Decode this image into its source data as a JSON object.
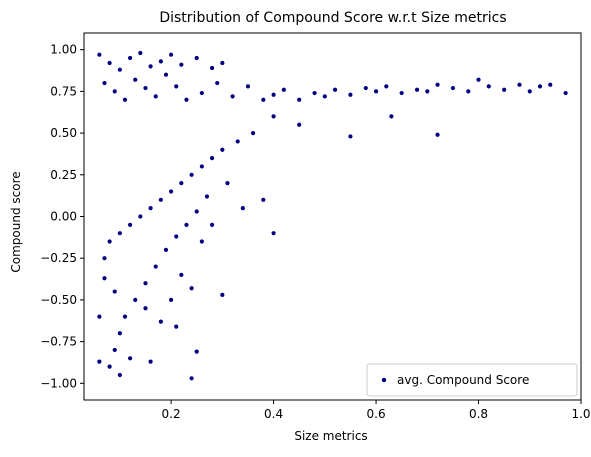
{
  "chart_data": {
    "type": "scatter",
    "title": "Distribution of Compound Score w.r.t Size metrics",
    "xlabel": "Size metrics",
    "ylabel": "Compound score",
    "xlim": [
      0.03,
      1.0
    ],
    "ylim": [
      -1.1,
      1.1
    ],
    "x_ticks": [
      0.2,
      0.4,
      0.6,
      0.8,
      1.0
    ],
    "x_tick_labels": [
      "0.2",
      "0.4",
      "0.6",
      "0.8",
      "1.0"
    ],
    "y_ticks": [
      1.0,
      0.75,
      0.5,
      0.25,
      0.0,
      -0.25,
      -0.5,
      -0.75,
      -1.0
    ],
    "y_tick_labels": [
      "1.00",
      "0.75",
      "0.50",
      "0.25",
      "0.00",
      "−0.25",
      "−0.50",
      "−0.75",
      "−1.00"
    ],
    "grid": false,
    "legend_position": "lower-right",
    "series": [
      {
        "name": "avg. Compound Score",
        "color": "#000080",
        "marker": "circle",
        "points": [
          [
            0.06,
            0.97
          ],
          [
            0.08,
            0.92
          ],
          [
            0.1,
            0.88
          ],
          [
            0.12,
            0.95
          ],
          [
            0.14,
            0.98
          ],
          [
            0.16,
            0.9
          ],
          [
            0.18,
            0.93
          ],
          [
            0.2,
            0.97
          ],
          [
            0.22,
            0.91
          ],
          [
            0.25,
            0.95
          ],
          [
            0.28,
            0.89
          ],
          [
            0.3,
            0.92
          ],
          [
            0.07,
            0.8
          ],
          [
            0.09,
            0.75
          ],
          [
            0.11,
            0.7
          ],
          [
            0.13,
            0.82
          ],
          [
            0.15,
            0.77
          ],
          [
            0.17,
            0.72
          ],
          [
            0.19,
            0.85
          ],
          [
            0.21,
            0.78
          ],
          [
            0.23,
            0.7
          ],
          [
            0.26,
            0.74
          ],
          [
            0.29,
            0.8
          ],
          [
            0.32,
            0.72
          ],
          [
            0.35,
            0.78
          ],
          [
            0.38,
            0.7
          ],
          [
            0.4,
            0.73
          ],
          [
            0.42,
            0.76
          ],
          [
            0.45,
            0.7
          ],
          [
            0.48,
            0.74
          ],
          [
            0.5,
            0.72
          ],
          [
            0.52,
            0.76
          ],
          [
            0.55,
            0.73
          ],
          [
            0.58,
            0.77
          ],
          [
            0.6,
            0.75
          ],
          [
            0.62,
            0.78
          ],
          [
            0.65,
            0.74
          ],
          [
            0.68,
            0.76
          ],
          [
            0.7,
            0.75
          ],
          [
            0.72,
            0.79
          ],
          [
            0.75,
            0.77
          ],
          [
            0.78,
            0.75
          ],
          [
            0.8,
            0.82
          ],
          [
            0.82,
            0.78
          ],
          [
            0.85,
            0.76
          ],
          [
            0.88,
            0.79
          ],
          [
            0.9,
            0.75
          ],
          [
            0.92,
            0.78
          ],
          [
            0.94,
            0.79
          ],
          [
            0.97,
            0.74
          ],
          [
            0.63,
            0.6
          ],
          [
            0.72,
            0.49
          ],
          [
            0.55,
            0.48
          ],
          [
            0.45,
            0.55
          ],
          [
            0.4,
            0.6
          ],
          [
            0.36,
            0.5
          ],
          [
            0.33,
            0.45
          ],
          [
            0.3,
            0.4
          ],
          [
            0.28,
            0.35
          ],
          [
            0.26,
            0.3
          ],
          [
            0.24,
            0.25
          ],
          [
            0.22,
            0.2
          ],
          [
            0.2,
            0.15
          ],
          [
            0.18,
            0.1
          ],
          [
            0.16,
            0.05
          ],
          [
            0.14,
            0.0
          ],
          [
            0.12,
            -0.05
          ],
          [
            0.1,
            -0.1
          ],
          [
            0.08,
            -0.15
          ],
          [
            0.34,
            0.05
          ],
          [
            0.4,
            -0.1
          ],
          [
            0.38,
            0.1
          ],
          [
            0.31,
            0.2
          ],
          [
            0.27,
            0.12
          ],
          [
            0.25,
            0.03
          ],
          [
            0.23,
            -0.05
          ],
          [
            0.21,
            -0.12
          ],
          [
            0.19,
            -0.2
          ],
          [
            0.17,
            -0.3
          ],
          [
            0.15,
            -0.4
          ],
          [
            0.13,
            -0.5
          ],
          [
            0.11,
            -0.6
          ],
          [
            0.1,
            -0.7
          ],
          [
            0.09,
            -0.8
          ],
          [
            0.08,
            -0.9
          ],
          [
            0.1,
            -0.95
          ],
          [
            0.12,
            -0.85
          ],
          [
            0.16,
            -0.87
          ],
          [
            0.24,
            -0.97
          ],
          [
            0.25,
            -0.81
          ],
          [
            0.21,
            -0.66
          ],
          [
            0.2,
            -0.5
          ],
          [
            0.3,
            -0.47
          ],
          [
            0.18,
            -0.63
          ],
          [
            0.15,
            -0.55
          ],
          [
            0.06,
            -0.6
          ],
          [
            0.06,
            -0.87
          ],
          [
            0.07,
            -0.37
          ],
          [
            0.07,
            -0.25
          ],
          [
            0.09,
            -0.45
          ],
          [
            0.24,
            -0.43
          ],
          [
            0.22,
            -0.35
          ],
          [
            0.26,
            -0.15
          ],
          [
            0.28,
            -0.05
          ]
        ]
      }
    ]
  }
}
